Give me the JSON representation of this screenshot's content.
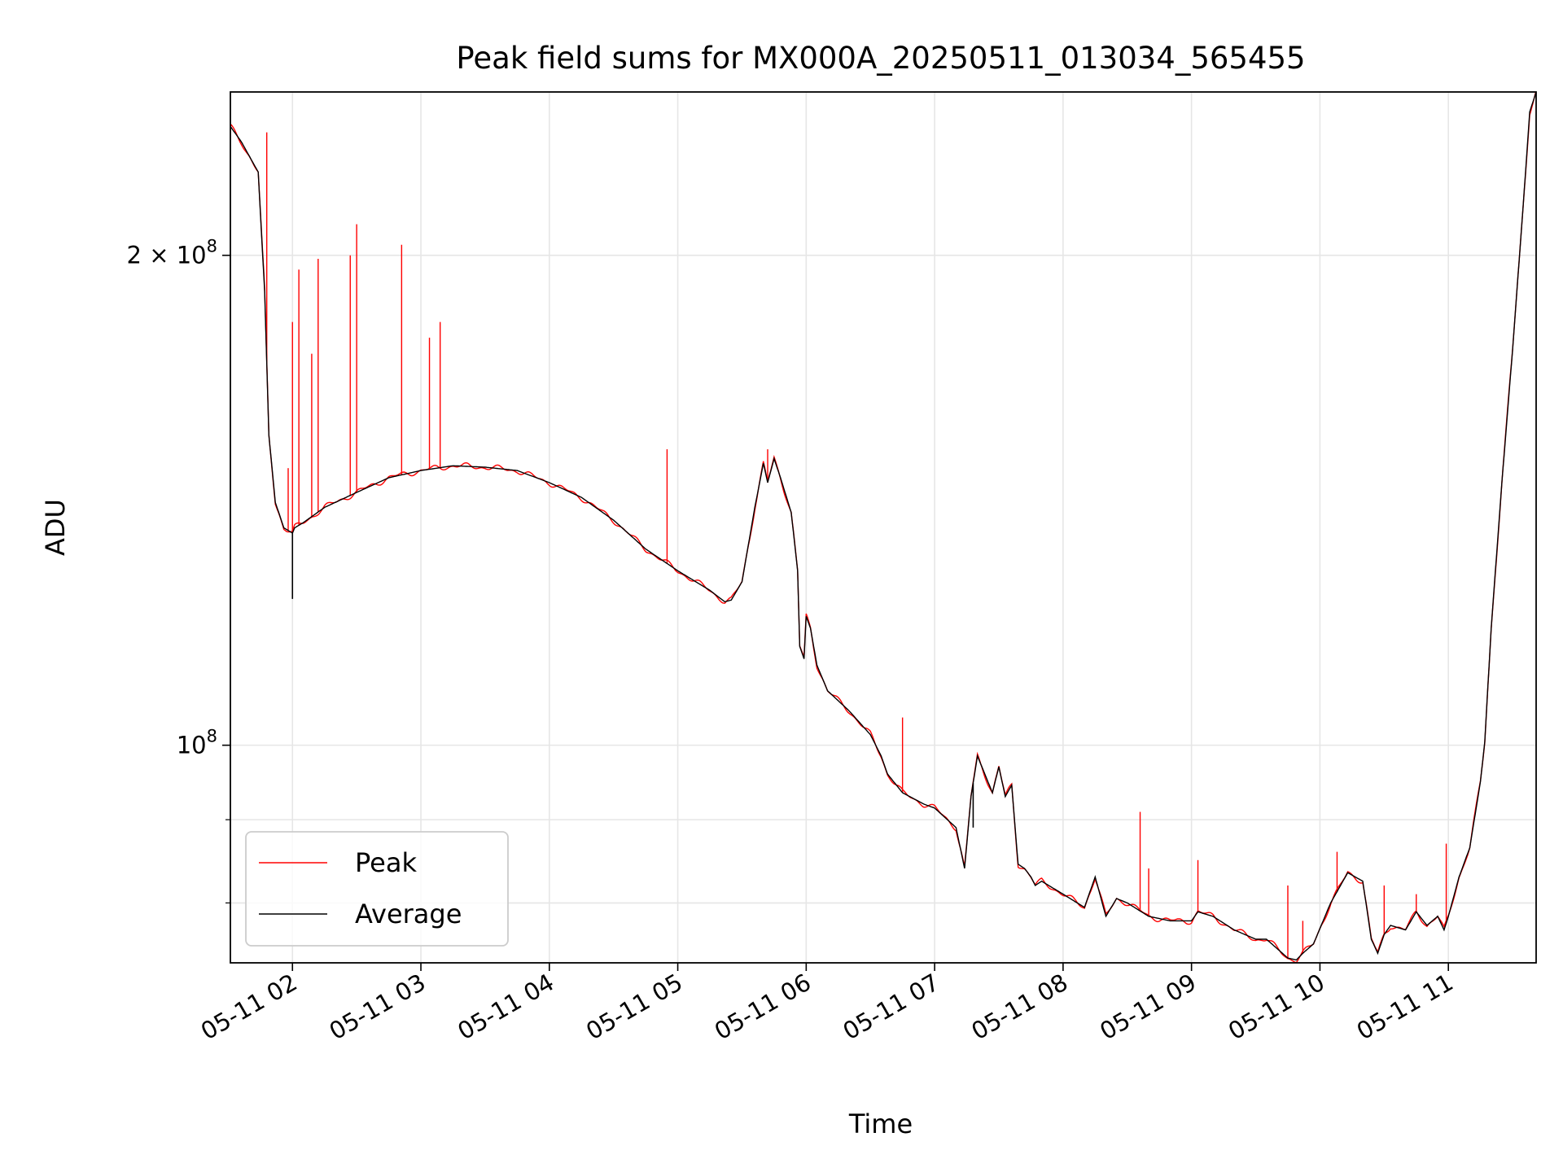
{
  "chart_data": {
    "type": "line",
    "title": "Peak field sums for MX000A_20250511_013034_565455",
    "xlabel": "Time",
    "ylabel": "ADU",
    "yscale": "log",
    "grid": true,
    "legend_position": "lower-left",
    "xlim": [
      "2025-05-11 01:31",
      "2025-05-11 11:41"
    ],
    "ylim": [
      73500000,
      252000000
    ],
    "x_ticks": [
      {
        "time": "2025-05-11 02:00",
        "label": "05-11 02"
      },
      {
        "time": "2025-05-11 03:00",
        "label": "05-11 03"
      },
      {
        "time": "2025-05-11 04:00",
        "label": "05-11 04"
      },
      {
        "time": "2025-05-11 05:00",
        "label": "05-11 05"
      },
      {
        "time": "2025-05-11 06:00",
        "label": "05-11 06"
      },
      {
        "time": "2025-05-11 07:00",
        "label": "05-11 07"
      },
      {
        "time": "2025-05-11 08:00",
        "label": "05-11 08"
      },
      {
        "time": "2025-05-11 09:00",
        "label": "05-11 09"
      },
      {
        "time": "2025-05-11 10:00",
        "label": "05-11 10"
      },
      {
        "time": "2025-05-11 11:00",
        "label": "05-11 11"
      }
    ],
    "y_major_ticks": [
      {
        "value": 100000000,
        "base": "10",
        "exp": "8",
        "mult": ""
      },
      {
        "value": 200000000,
        "base": "10",
        "exp": "8",
        "mult": "2 × "
      }
    ],
    "y_minor_ticks": [
      80000000,
      90000000
    ],
    "series": [
      {
        "name": "Peak",
        "color": "#ff0000",
        "x": [
          "01:31",
          "01:36",
          "01:44",
          "01:47",
          "01:49",
          "01:52",
          "01:56",
          "02:00",
          "02:01",
          "02:05",
          "02:15",
          "02:30",
          "02:45",
          "03:00",
          "03:15",
          "03:30",
          "03:45",
          "04:00",
          "04:15",
          "04:30",
          "04:45",
          "05:00",
          "05:15",
          "05:22",
          "05:25",
          "05:30",
          "05:36",
          "05:40",
          "05:42",
          "05:45",
          "05:48",
          "05:53",
          "05:56",
          "05:57",
          "05:59",
          "06:00",
          "06:02",
          "06:03",
          "06:05",
          "06:10",
          "06:20",
          "06:30",
          "06:35",
          "06:38",
          "06:45",
          "06:55",
          "07:00",
          "07:10",
          "07:14",
          "07:17",
          "07:20",
          "07:27",
          "07:30",
          "07:33",
          "07:36",
          "07:39",
          "07:42",
          "07:45",
          "07:47",
          "07:50",
          "08:00",
          "08:10",
          "08:15",
          "08:20",
          "08:25",
          "08:30",
          "08:40",
          "08:50",
          "09:00",
          "09:03",
          "09:10",
          "09:20",
          "09:30",
          "09:35",
          "09:45",
          "09:49",
          "09:52",
          "09:57",
          "10:05",
          "10:13",
          "10:20",
          "10:24",
          "10:27",
          "10:30",
          "10:33",
          "10:40",
          "10:45",
          "10:50",
          "10:55",
          "10:58",
          "11:00",
          "11:05",
          "11:10",
          "11:15",
          "11:17",
          "11:20",
          "11:25",
          "11:30",
          "11:35",
          "11:38",
          "11:41"
        ],
        "y": [
          240000000,
          235000000,
          225000000,
          190000000,
          155000000,
          141000000,
          136000000,
          135000000,
          136000000,
          137000000,
          140000000,
          143000000,
          146000000,
          147500000,
          148500000,
          148200000,
          147500000,
          145000000,
          142000000,
          137500000,
          132000000,
          128000000,
          124500000,
          122500000,
          122800000,
          126000000,
          140000000,
          149000000,
          145000000,
          150000000,
          146000000,
          139000000,
          128000000,
          115000000,
          113000000,
          120000000,
          118000000,
          116000000,
          112000000,
          108000000,
          105000000,
          101500000,
          98500000,
          96000000,
          93500000,
          92000000,
          91500000,
          89000000,
          84000000,
          93000000,
          98500000,
          93500000,
          97000000,
          93000000,
          94500000,
          84500000,
          84000000,
          83000000,
          82000000,
          82500000,
          81000000,
          79500000,
          83000000,
          78500000,
          80500000,
          80000000,
          78500000,
          78000000,
          78000000,
          79000000,
          78500000,
          77000000,
          76000000,
          76000000,
          74000000,
          73800000,
          74500000,
          75500000,
          80000000,
          83500000,
          82500000,
          76000000,
          74500000,
          76500000,
          77500000,
          77000000,
          79000000,
          77500000,
          78500000,
          77000000,
          78500000,
          83000000,
          86500000,
          95000000,
          100500000,
          118000000,
          145000000,
          175000000,
          215000000,
          245000000,
          252000000
        ]
      },
      {
        "name": "Average",
        "color": "#000000",
        "x": [
          "01:31",
          "01:36",
          "01:44",
          "01:47",
          "01:49",
          "01:52",
          "01:56",
          "02:00",
          "02:01",
          "02:05",
          "02:15",
          "02:30",
          "02:45",
          "03:00",
          "03:15",
          "03:30",
          "03:45",
          "04:00",
          "04:15",
          "04:30",
          "04:45",
          "05:00",
          "05:15",
          "05:22",
          "05:25",
          "05:30",
          "05:36",
          "05:40",
          "05:42",
          "05:45",
          "05:48",
          "05:53",
          "05:56",
          "05:57",
          "05:59",
          "06:00",
          "06:02",
          "06:03",
          "06:05",
          "06:10",
          "06:20",
          "06:30",
          "06:35",
          "06:38",
          "06:45",
          "06:55",
          "07:00",
          "07:10",
          "07:14",
          "07:17",
          "07:20",
          "07:27",
          "07:30",
          "07:33",
          "07:36",
          "07:39",
          "07:42",
          "07:45",
          "07:47",
          "07:50",
          "08:00",
          "08:10",
          "08:15",
          "08:20",
          "08:25",
          "08:30",
          "08:40",
          "08:50",
          "09:00",
          "09:03",
          "09:10",
          "09:20",
          "09:30",
          "09:35",
          "09:45",
          "09:49",
          "09:52",
          "09:57",
          "10:05",
          "10:13",
          "10:20",
          "10:24",
          "10:27",
          "10:30",
          "10:33",
          "10:40",
          "10:45",
          "10:50",
          "10:55",
          "10:58",
          "11:00",
          "11:05",
          "11:10",
          "11:15",
          "11:17",
          "11:20",
          "11:25",
          "11:30",
          "11:35",
          "11:38",
          "11:41"
        ],
        "y": [
          240000000,
          235000000,
          225000000,
          190000000,
          155000000,
          141000000,
          136000000,
          135000000,
          136000000,
          137000000,
          140000000,
          143000000,
          146000000,
          147500000,
          148500000,
          148200000,
          147500000,
          145000000,
          142000000,
          137500000,
          132000000,
          128000000,
          124500000,
          122500000,
          122800000,
          126000000,
          140000000,
          149000000,
          145000000,
          150000000,
          146000000,
          139000000,
          128000000,
          115000000,
          113000000,
          120000000,
          118000000,
          116000000,
          112000000,
          108000000,
          105000000,
          101500000,
          98500000,
          96000000,
          93500000,
          92000000,
          91500000,
          89000000,
          84000000,
          93000000,
          98500000,
          93500000,
          97000000,
          93000000,
          94500000,
          84500000,
          84000000,
          83000000,
          82000000,
          82500000,
          81000000,
          79500000,
          83000000,
          78500000,
          80500000,
          80000000,
          78500000,
          78000000,
          78000000,
          79000000,
          78500000,
          77000000,
          76000000,
          76000000,
          74000000,
          73800000,
          74500000,
          75500000,
          80000000,
          83500000,
          82500000,
          76000000,
          74500000,
          76500000,
          77500000,
          77000000,
          79000000,
          77500000,
          78500000,
          77000000,
          78500000,
          83000000,
          86500000,
          95000000,
          100500000,
          118000000,
          145000000,
          175000000,
          215000000,
          245000000,
          252000000
        ]
      }
    ],
    "peak_spikes": [
      {
        "time": "01:48",
        "value": 238000000
      },
      {
        "time": "01:58",
        "value": 148000000
      },
      {
        "time": "02:00",
        "value": 182000000
      },
      {
        "time": "02:03",
        "value": 196000000
      },
      {
        "time": "02:09",
        "value": 174000000
      },
      {
        "time": "02:12",
        "value": 199000000
      },
      {
        "time": "02:27",
        "value": 200000000
      },
      {
        "time": "02:30",
        "value": 209000000
      },
      {
        "time": "02:51",
        "value": 203000000
      },
      {
        "time": "03:04",
        "value": 178000000
      },
      {
        "time": "03:09",
        "value": 182000000
      },
      {
        "time": "04:55",
        "value": 152000000
      },
      {
        "time": "05:42",
        "value": 152000000
      },
      {
        "time": "06:45",
        "value": 104000000
      },
      {
        "time": "08:36",
        "value": 91000000
      },
      {
        "time": "08:40",
        "value": 84000000
      },
      {
        "time": "09:03",
        "value": 85000000
      },
      {
        "time": "09:45",
        "value": 82000000
      },
      {
        "time": "09:52",
        "value": 78000000
      },
      {
        "time": "10:08",
        "value": 86000000
      },
      {
        "time": "10:30",
        "value": 82000000
      },
      {
        "time": "10:45",
        "value": 81000000
      },
      {
        "time": "10:59",
        "value": 87000000
      }
    ],
    "average_dips": [
      {
        "time": "02:00",
        "value": 123000000
      },
      {
        "time": "07:18",
        "value": 89000000
      }
    ],
    "legend": [
      {
        "label": "Peak",
        "color": "#ff0000"
      },
      {
        "label": "Average",
        "color": "#000000"
      }
    ]
  }
}
